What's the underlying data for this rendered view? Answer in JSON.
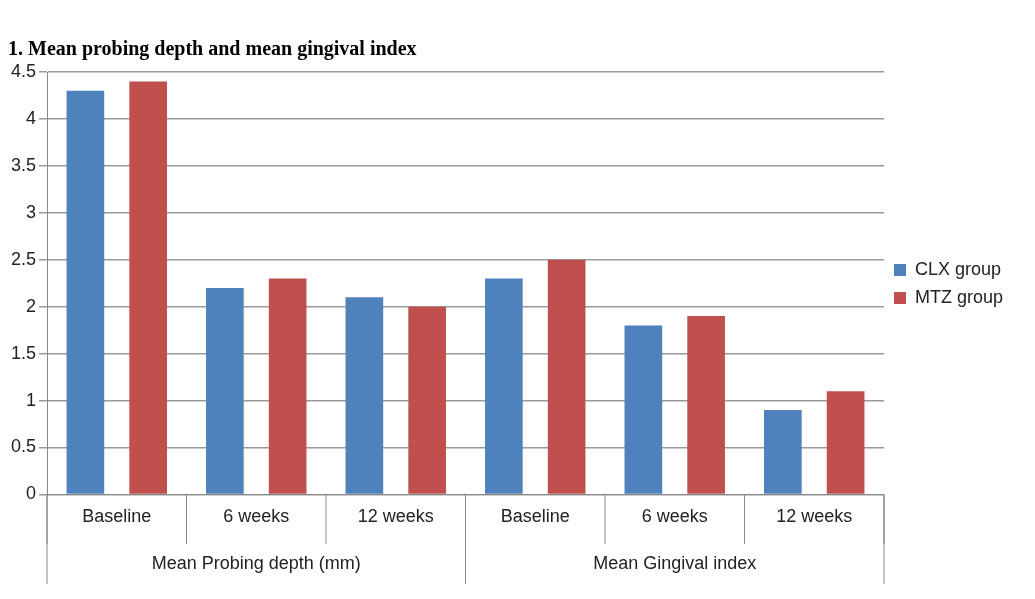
{
  "chart_data": {
    "type": "bar",
    "title": "1. Mean probing depth and mean gingival index",
    "categories": [
      "Baseline",
      "6 weeks",
      "12 weeks",
      "Baseline",
      "6 weeks",
      "12 weeks"
    ],
    "series": [
      {
        "name": "CLX group",
        "color": "#4f81bd",
        "values": [
          4.3,
          2.2,
          2.1,
          2.3,
          1.8,
          0.9
        ]
      },
      {
        "name": "MTZ group",
        "color": "#c0504d",
        "values": [
          4.4,
          2.3,
          2.0,
          2.5,
          1.9,
          1.1
        ]
      }
    ],
    "annotations": [
      "Mean Probing depth (mm)",
      "Mean Gingival index"
    ],
    "ylim": [
      0,
      4.5
    ],
    "yticks": [
      0,
      0.5,
      1,
      1.5,
      2,
      2.5,
      3,
      3.5,
      4,
      4.5
    ],
    "grid": "y",
    "legend": "right"
  }
}
